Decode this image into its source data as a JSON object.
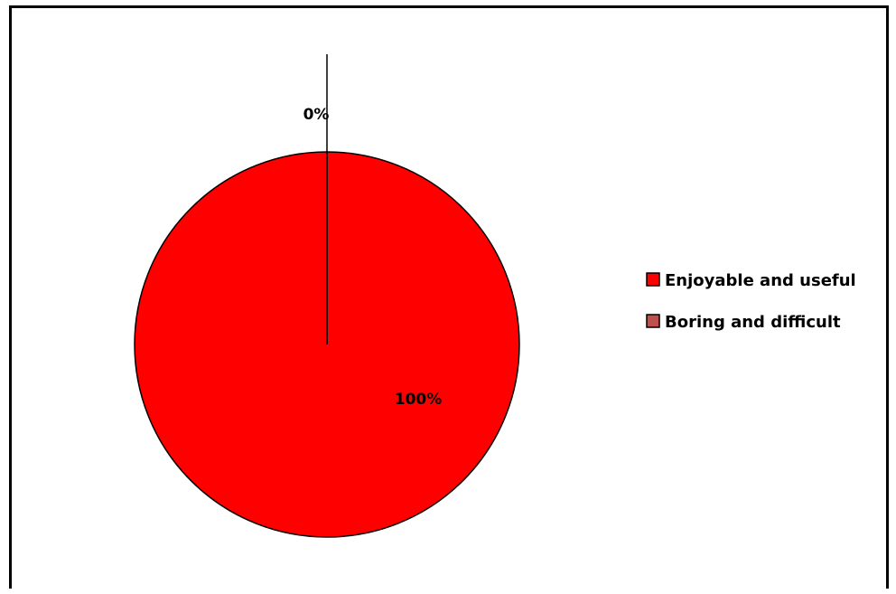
{
  "chart_data": {
    "type": "pie",
    "title": "",
    "categories": [
      "Enjoyable and useful",
      "Boring and difficult"
    ],
    "values": [
      100,
      0
    ],
    "data_labels": [
      "100%",
      "0%"
    ],
    "colors": [
      "#ff0000",
      "#c0504d"
    ],
    "start_angle": "12 o'clock",
    "legend": {
      "position": "right",
      "entries": [
        "Enjoyable and useful",
        "Boring and difficult"
      ]
    }
  }
}
